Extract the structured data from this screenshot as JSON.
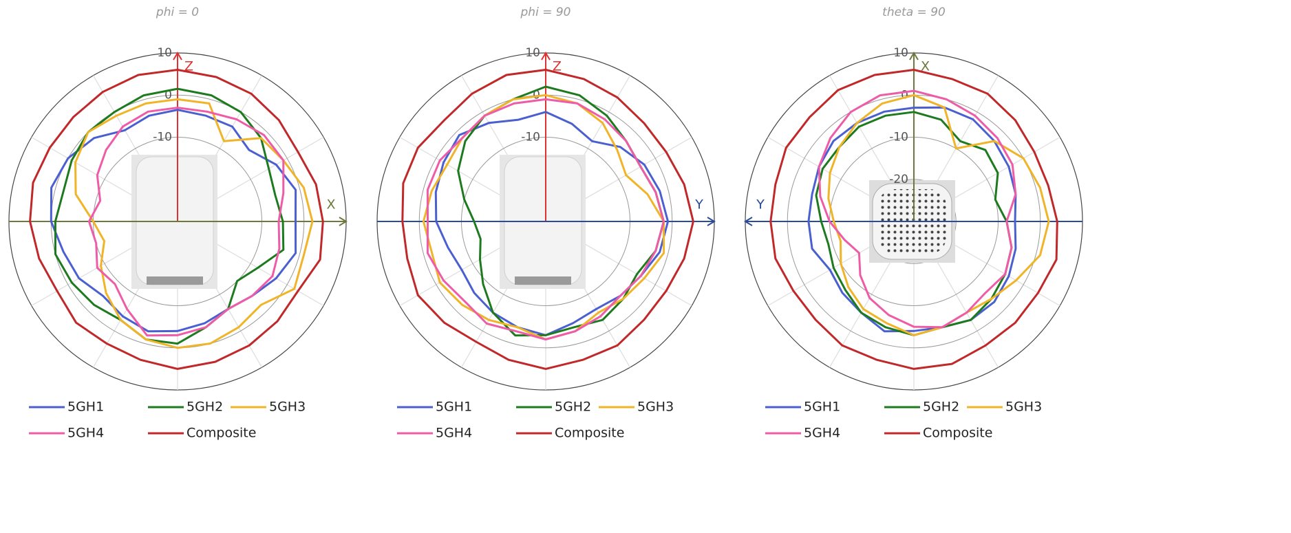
{
  "chart_data": [
    {
      "type": "polar",
      "title": "phi = 0",
      "axis_up": "Z",
      "axis_side": "X",
      "axis_side_direction": "right",
      "up_axis_color": "#e03131",
      "side_axis_color": "#6b7a3a",
      "device": "tall",
      "x": [
        0,
        15,
        30,
        45,
        60,
        75,
        90,
        105,
        120,
        135,
        150,
        165,
        180,
        195,
        210,
        225,
        240,
        255,
        270,
        285,
        300,
        315,
        330,
        345
      ],
      "xticks": [
        0,
        30,
        60,
        90,
        120,
        150,
        180,
        210,
        240,
        270,
        300,
        330
      ],
      "ylim": [
        -30,
        10
      ],
      "yticks": [
        -10,
        0,
        10
      ],
      "grid": true,
      "series": [
        {
          "name": "5GH1",
          "color": "#4a5fd0",
          "values": [
            -3.5,
            -4,
            -4,
            -6,
            -3,
            -1,
            -2,
            -1,
            -3,
            -5,
            -6,
            -5,
            -4,
            -3,
            -4,
            -5,
            -3,
            -2,
            0,
            1,
            0,
            -2,
            -5,
            -4
          ]
        },
        {
          "name": "5GH2",
          "color": "#1e7a1e",
          "values": [
            1.5,
            1,
            0,
            -2,
            -5,
            -6,
            -5,
            -4,
            -8,
            -10,
            -6,
            -4,
            -1,
            -1,
            -3,
            -2,
            -1,
            0,
            -1,
            -2,
            -1,
            0,
            0,
            1
          ]
        },
        {
          "name": "5GH3",
          "color": "#f0b429",
          "values": [
            -1,
            -1,
            -8,
            -2,
            -1,
            1,
            2,
            1,
            2,
            -2,
            -1,
            0,
            0,
            -1,
            -3,
            -6,
            -9,
            -12,
            -10,
            -5,
            -2,
            0,
            -1,
            -1
          ]
        },
        {
          "name": "5GH4",
          "color": "#ee5ca8",
          "values": [
            -3,
            -3,
            -2,
            -1,
            -1,
            -4,
            -6,
            -5,
            -4,
            -5,
            -6,
            -4,
            -3,
            -2,
            -6,
            -9,
            -8,
            -10,
            -9,
            -11,
            -8,
            -6,
            -4,
            -3
          ]
        },
        {
          "name": "Composite",
          "color": "#c0282a",
          "values": [
            6,
            5.5,
            5,
            4,
            3,
            4,
            4.5,
            5,
            3,
            3.5,
            4,
            4.5,
            5,
            4,
            3.5,
            4,
            3,
            4,
            5,
            5.5,
            5,
            5,
            5.5,
            6
          ]
        }
      ]
    },
    {
      "type": "polar",
      "title": "phi = 90",
      "axis_up": "Z",
      "axis_side": "Y",
      "axis_side_direction": "right",
      "up_axis_color": "#e03131",
      "side_axis_color": "#2b4a9a",
      "device": "tall",
      "x": [
        0,
        15,
        30,
        45,
        60,
        75,
        90,
        105,
        120,
        135,
        150,
        165,
        180,
        195,
        210,
        225,
        240,
        255,
        270,
        285,
        300,
        315,
        330,
        345
      ],
      "xticks": [
        0,
        30,
        60,
        90,
        120,
        150,
        180,
        210,
        240,
        270,
        300,
        330
      ],
      "ylim": [
        -30,
        10
      ],
      "yticks": [
        -10,
        0,
        10
      ],
      "grid": true,
      "series": [
        {
          "name": "5GH1",
          "color": "#4a5fd0",
          "values": [
            -4,
            -6,
            -8,
            -5,
            -3,
            -2,
            -1,
            -2,
            -4,
            -5,
            -6,
            -5,
            -3,
            -4,
            -5,
            -6,
            -7,
            -6,
            -4,
            -3,
            -2,
            -1,
            -3,
            -5
          ]
        },
        {
          "name": "5GH2",
          "color": "#1e7a1e",
          "values": [
            2,
            1,
            -1,
            -3,
            -4,
            -3,
            -2,
            -3,
            -5,
            -4,
            -3,
            -4,
            -3,
            -2,
            -5,
            -9,
            -12,
            -14,
            -13,
            -10,
            -6,
            -3,
            -1,
            0
          ]
        },
        {
          "name": "5GH3",
          "color": "#f0b429",
          "values": [
            0,
            -1,
            -3,
            -6,
            -8,
            -5,
            -2,
            -1,
            -3,
            -4,
            -5,
            -3,
            -2,
            -4,
            -3,
            -2,
            -1,
            -2,
            -1,
            -2,
            -3,
            -2,
            -1,
            0
          ]
        },
        {
          "name": "5GH4",
          "color": "#ee5ca8",
          "values": [
            -1,
            -1,
            -2,
            -3,
            -4,
            -3,
            -2,
            -3,
            -4,
            -5,
            -4,
            -3,
            -2,
            -3,
            -2,
            -3,
            -2,
            -1,
            -2,
            -1,
            -1,
            -2,
            -1,
            -1
          ]
        },
        {
          "name": "Composite",
          "color": "#c0282a",
          "values": [
            6,
            5,
            4,
            3,
            3,
            4,
            5,
            4,
            3,
            3,
            4,
            4,
            5,
            4,
            3,
            4,
            5,
            4,
            4,
            5,
            5,
            4,
            5,
            6
          ]
        }
      ]
    },
    {
      "type": "polar",
      "title": "theta = 90",
      "axis_up": "X",
      "axis_side": "Y",
      "axis_side_direction": "left",
      "up_axis_color": "#6b7a3a",
      "side_axis_color": "#2b4a9a",
      "device": "square",
      "x": [
        0,
        15,
        30,
        45,
        60,
        75,
        90,
        105,
        120,
        135,
        150,
        165,
        180,
        195,
        210,
        225,
        240,
        255,
        270,
        285,
        300,
        315,
        330,
        345
      ],
      "xticks": [
        0,
        30,
        60,
        90,
        120,
        150,
        180,
        210,
        240,
        270,
        300,
        330
      ],
      "ylim": [
        -30,
        10
      ],
      "yticks": [
        -20,
        -10,
        0,
        10
      ],
      "grid": true,
      "series": [
        {
          "name": "5GH1",
          "color": "#4a5fd0",
          "values": [
            -3,
            -2,
            -2,
            -3,
            -4,
            -5,
            -6,
            -5,
            -4,
            -3,
            -3,
            -4,
            -4,
            -3,
            -5,
            -6,
            -7,
            -5,
            -5,
            -5,
            -4,
            -3,
            -3,
            -3
          ]
        },
        {
          "name": "5GH2",
          "color": "#1e7a1e",
          "values": [
            -4,
            -5,
            -8,
            -6,
            -7,
            -10,
            -8,
            -6,
            -5,
            -4,
            -3,
            -4,
            -3,
            -4,
            -5,
            -7,
            -8,
            -9,
            -8,
            -6,
            -5,
            -5,
            -4,
            -4
          ]
        },
        {
          "name": "5GH3",
          "color": "#f0b429",
          "values": [
            0,
            -2,
            -10,
            -3,
            0,
            1,
            2,
            1,
            -2,
            -4,
            -5,
            -4,
            -3,
            -5,
            -6,
            -8,
            -10,
            -12,
            -11,
            -9,
            -7,
            -5,
            -3,
            -1
          ]
        },
        {
          "name": "5GH4",
          "color": "#ee5ca8",
          "values": [
            1,
            0,
            -1,
            -2,
            -3,
            -5,
            -8,
            -6,
            -5,
            -6,
            -5,
            -4,
            -5,
            -7,
            -9,
            -12,
            -15,
            -13,
            -10,
            -7,
            -4,
            -2,
            0,
            1
          ]
        },
        {
          "name": "Composite",
          "color": "#c0282a",
          "values": [
            6,
            5,
            5,
            4,
            3,
            3,
            4,
            5,
            4,
            4,
            4,
            5,
            5,
            4,
            4,
            3,
            3,
            4,
            4,
            4,
            5,
            5,
            6,
            6
          ]
        }
      ]
    }
  ]
}
